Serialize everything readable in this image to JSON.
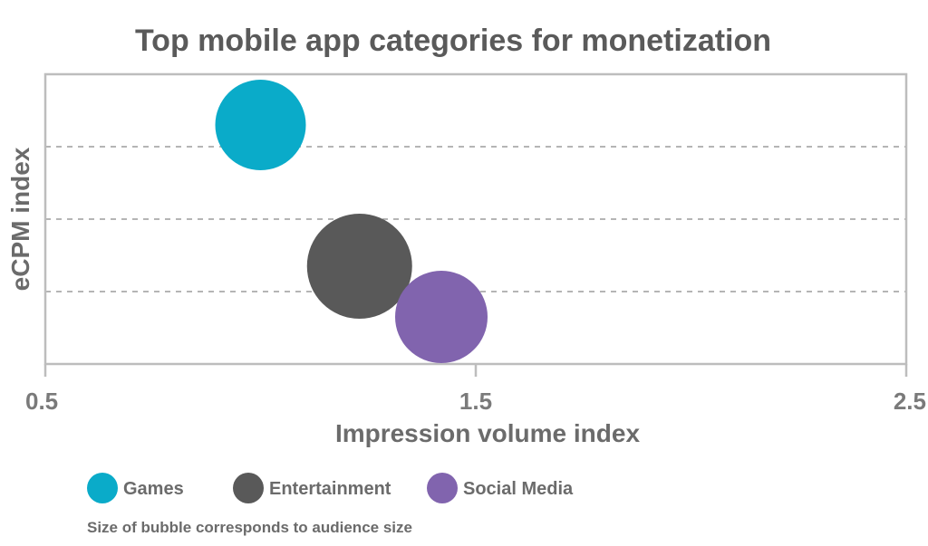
{
  "chart_data": {
    "type": "bubble",
    "title": "Top mobile app categories for monetization",
    "xlabel": "Impression volume index",
    "ylabel": "eCPM index",
    "xlim": [
      0.5,
      2.5
    ],
    "ylim": [
      0,
      4
    ],
    "x_ticks": [
      {
        "value": 0.5,
        "label": "0.5"
      },
      {
        "value": 1.5,
        "label": "1.5"
      },
      {
        "value": 2.5,
        "label": "2.5"
      }
    ],
    "y_gridlines": [
      1,
      2,
      3
    ],
    "grid": "horizontal dashed",
    "legend_position": "bottom-left",
    "series": [
      {
        "name": "Games",
        "x": 1.0,
        "y": 3.3,
        "size": 50,
        "color": "#0aabc9"
      },
      {
        "name": "Entertainment",
        "x": 1.23,
        "y": 1.35,
        "size": 58,
        "color": "#595959"
      },
      {
        "name": "Social Media",
        "x": 1.42,
        "y": 0.65,
        "size": 51,
        "color": "#8164ae"
      }
    ],
    "note": "Size of bubble corresponds to audience size"
  }
}
